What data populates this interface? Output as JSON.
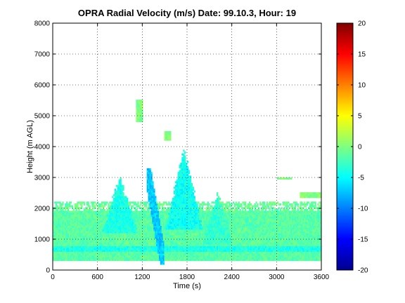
{
  "chart_data": {
    "type": "heatmap",
    "title": "OPRA Radial Velocity (m/s)  Date: 99.10.3, Hour: 19",
    "xlabel": "Time (s)",
    "ylabel": "Height (m AGL)",
    "xlim": [
      0,
      3600
    ],
    "ylim": [
      0,
      8000
    ],
    "x_ticks": [
      0,
      600,
      1200,
      1800,
      2400,
      3000,
      3600
    ],
    "y_ticks": [
      0,
      1000,
      2000,
      3000,
      4000,
      5000,
      6000,
      7000,
      8000
    ],
    "grid": "dotted",
    "colormap": "jet",
    "clim": [
      -20,
      20
    ],
    "colorbar_ticks": [
      20,
      15,
      10,
      5,
      0,
      -5,
      -10,
      -15,
      -20
    ],
    "colors": {
      "background": "#ffffff",
      "frame": "#000000"
    },
    "echo_regions": [
      {
        "name": "main boundary layer echo",
        "t": [
          0,
          3600
        ],
        "h": [
          300,
          1900
        ],
        "velocity": -1.5
      },
      {
        "name": "upper layer echo",
        "t": [
          0,
          3600
        ],
        "h": [
          1900,
          2200
        ],
        "velocity": -1
      },
      {
        "name": "low-level band",
        "t": [
          0,
          3600
        ],
        "h": [
          550,
          750
        ],
        "velocity": -4
      },
      {
        "name": "descending downdraft streak",
        "t": [
          1250,
          1480
        ],
        "h": [
          150,
          3300
        ],
        "velocity": -7
      },
      {
        "name": "plume 1",
        "t": [
          660,
          1120
        ],
        "h": [
          1200,
          3000
        ],
        "velocity": -4
      },
      {
        "name": "plume 2",
        "t": [
          1500,
          2000
        ],
        "h": [
          1300,
          3900
        ],
        "velocity": -4.5
      },
      {
        "name": "plume 3",
        "t": [
          2000,
          2400
        ],
        "h": [
          800,
          2500
        ],
        "velocity": -3
      },
      {
        "name": "isolated echo",
        "t": [
          1100,
          1200
        ],
        "h": [
          4800,
          5500
        ],
        "velocity": 0
      },
      {
        "name": "isolated echo",
        "t": [
          1480,
          1580
        ],
        "h": [
          4200,
          4450
        ],
        "velocity": 0
      },
      {
        "name": "isolated echo",
        "t": [
          3000,
          3200
        ],
        "h": [
          2900,
          3000
        ],
        "velocity": 0
      },
      {
        "name": "isolated echo",
        "t": [
          3300,
          3600
        ],
        "h": [
          2300,
          2500
        ],
        "velocity": 0
      }
    ]
  }
}
